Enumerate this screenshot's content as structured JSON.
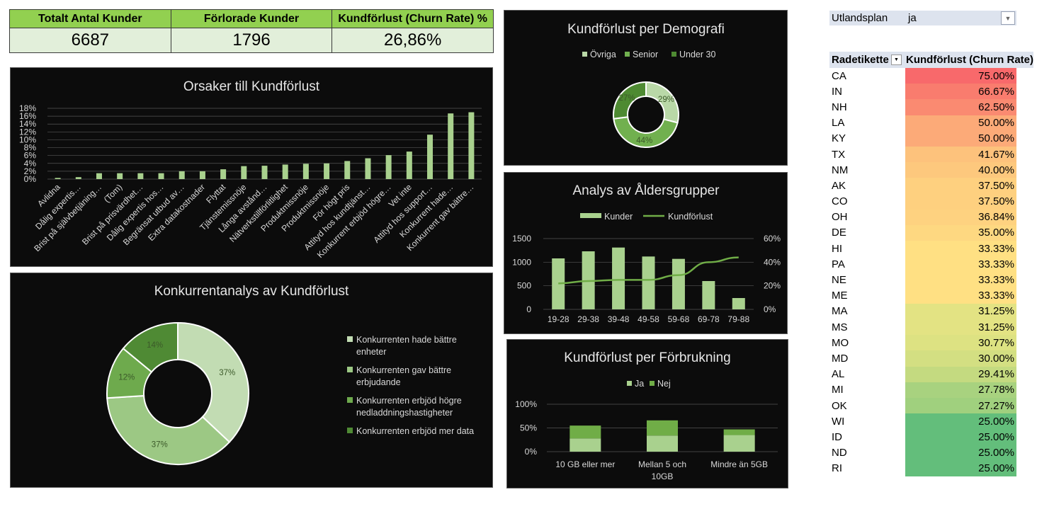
{
  "kpis": [
    {
      "label": "Totalt Antal Kunder",
      "value": "6687"
    },
    {
      "label": "Förlorade Kunder",
      "value": "1796"
    },
    {
      "label": "Kundförlust (Churn Rate) %",
      "value": "26,86%"
    }
  ],
  "filter": {
    "label": "Utlandsplan",
    "value": "ja"
  },
  "pivot": {
    "header_row_label": "Radetikette",
    "header_value_label": "Kundförlust (Churn Rate)",
    "rows": [
      {
        "state": "CA",
        "rate": "75.00%",
        "color": "#f8696b"
      },
      {
        "state": "IN",
        "rate": "66.67%",
        "color": "#f97c6e"
      },
      {
        "state": "NH",
        "rate": "62.50%",
        "color": "#fa8a71"
      },
      {
        "state": "LA",
        "rate": "50.00%",
        "color": "#fcaa78"
      },
      {
        "state": "KY",
        "rate": "50.00%",
        "color": "#fcaa78"
      },
      {
        "state": "TX",
        "rate": "41.67%",
        "color": "#fdc27c"
      },
      {
        "state": "NM",
        "rate": "40.00%",
        "color": "#fdc87d"
      },
      {
        "state": "AK",
        "rate": "37.50%",
        "color": "#fed07f"
      },
      {
        "state": "CO",
        "rate": "37.50%",
        "color": "#fed07f"
      },
      {
        "state": "OH",
        "rate": "36.84%",
        "color": "#fed280"
      },
      {
        "state": "DE",
        "rate": "35.00%",
        "color": "#fed881"
      },
      {
        "state": "HI",
        "rate": "33.33%",
        "color": "#ffe083"
      },
      {
        "state": "PA",
        "rate": "33.33%",
        "color": "#ffe083"
      },
      {
        "state": "NE",
        "rate": "33.33%",
        "color": "#ffe083"
      },
      {
        "state": "ME",
        "rate": "33.33%",
        "color": "#ffe083"
      },
      {
        "state": "MA",
        "rate": "31.25%",
        "color": "#e3e383"
      },
      {
        "state": "MS",
        "rate": "31.25%",
        "color": "#e3e383"
      },
      {
        "state": "MO",
        "rate": "30.77%",
        "color": "#dde282"
      },
      {
        "state": "MD",
        "rate": "30.00%",
        "color": "#d3df82"
      },
      {
        "state": "AL",
        "rate": "29.41%",
        "color": "#c4da80"
      },
      {
        "state": "MI",
        "rate": "27.78%",
        "color": "#a8d27f"
      },
      {
        "state": "OK",
        "rate": "27.27%",
        "color": "#a0d07e"
      },
      {
        "state": "WI",
        "rate": "25.00%",
        "color": "#63be7b"
      },
      {
        "state": "ID",
        "rate": "25.00%",
        "color": "#63be7b"
      },
      {
        "state": "ND",
        "rate": "25.00%",
        "color": "#63be7b"
      },
      {
        "state": "RI",
        "rate": "25.00%",
        "color": "#63be7b"
      }
    ]
  },
  "chart_data": [
    {
      "id": "reasons",
      "type": "bar",
      "title": "Orsaker till Kundförlust",
      "categories": [
        "Avlidna",
        "Dålig expertis…",
        "Brist på självbetjäning…",
        "(Tom)",
        "Brist på prisvärdhet…",
        "Dålig expertis hos…",
        "Begränsat utbud av…",
        "Extra datakostnader",
        "Flyttat",
        "Tjänstemissnöje",
        "Långa avstånd…",
        "Nätverkstillförlitlighet",
        "Produktmissnöje",
        "Produktmissnöje",
        "För högt pris",
        "Attityd hos kundtjänst…",
        "Konkurrent erbjöd högre…",
        "Vet inte",
        "Attityd hos support…",
        "Konkurrent hade…",
        "Konkurrent gav bättre…"
      ],
      "values": [
        0.3,
        0.5,
        1.5,
        1.5,
        1.5,
        1.5,
        2.0,
        2.0,
        2.5,
        3.3,
        3.4,
        3.7,
        3.9,
        4.0,
        4.6,
        5.3,
        6.1,
        7.0,
        11.3,
        16.7,
        17.0
      ],
      "ylim": [
        0,
        18
      ],
      "yticks": [
        "0%",
        "2%",
        "4%",
        "6%",
        "8%",
        "10%",
        "12%",
        "14%",
        "16%",
        "18%"
      ],
      "grid": true
    },
    {
      "id": "demography",
      "type": "pie",
      "title": "Kundförlust per Demografi",
      "series": [
        {
          "name": "Övriga",
          "value": 29,
          "label": "29%",
          "color": "#b9d8a7"
        },
        {
          "name": "Senior",
          "value": 44,
          "label": "44%",
          "color": "#71b04f"
        },
        {
          "name": "Under 30",
          "value": 27,
          "label": "27%",
          "color": "#4e8a32"
        }
      ],
      "legend": "top"
    },
    {
      "id": "age",
      "type": "bar",
      "title": "Analys av Åldersgrupper",
      "categories": [
        "19-28",
        "29-38",
        "39-48",
        "49-58",
        "59-68",
        "69-78",
        "79-88"
      ],
      "series": [
        {
          "name": "Kunder",
          "type": "bar",
          "values": [
            1080,
            1230,
            1310,
            1120,
            1070,
            600,
            240
          ]
        },
        {
          "name": "Kundförlust",
          "type": "line",
          "values": [
            22,
            24,
            25,
            25,
            29,
            40,
            44
          ]
        }
      ],
      "ylim": [
        0,
        1500
      ],
      "yticks": [
        "0",
        "500",
        "1000",
        "1500"
      ],
      "y2lim": [
        0,
        60
      ],
      "y2ticks": [
        "0%",
        "20%",
        "40%",
        "60%"
      ],
      "legend": "top"
    },
    {
      "id": "competitor",
      "type": "pie",
      "title": "Konkurrentanalys av Kundförlust",
      "series": [
        {
          "name": "Konkurrenten hade bättre enheter",
          "value": 37,
          "label": "37%",
          "color": "#c2dcb3"
        },
        {
          "name": "Konkurrenten gav bättre erbjudande",
          "value": 37,
          "label": "37%",
          "color": "#9cc884"
        },
        {
          "name": "Konkurrenten erbjöd högre nedladdningshastigheter",
          "value": 12,
          "label": "12%",
          "color": "#6eaa4d"
        },
        {
          "name": "Konkurrenten erbjöd mer data",
          "value": 14,
          "label": "14%",
          "color": "#4f8a34"
        }
      ],
      "legend": "right"
    },
    {
      "id": "usage",
      "type": "bar",
      "title": "Kundförlust per Förbrukning",
      "categories": [
        "10 GB eller mer",
        "Mellan 5 och 10GB",
        "Mindre än 5GB"
      ],
      "series": [
        {
          "name": "Ja",
          "values": [
            28,
            34,
            35
          ]
        },
        {
          "name": "Nej",
          "values": [
            27,
            32,
            12
          ]
        }
      ],
      "stacked": true,
      "ylim": [
        0,
        100
      ],
      "yticks": [
        "0%",
        "50%",
        "100%"
      ],
      "legend": "top"
    }
  ]
}
